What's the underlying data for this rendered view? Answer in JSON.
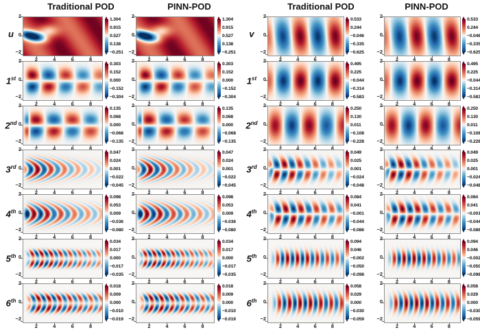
{
  "chart_data": {
    "type": "heatmap",
    "description": "Grid of 28 heatmap panels comparing Traditional POD and PINN-POD modes for velocity components u and v",
    "column_headers": [
      "Traditional POD",
      "PINN-POD",
      "Traditional POD",
      "PINN-POD"
    ],
    "axis": {
      "x_ticks": [
        2,
        4,
        6,
        8
      ],
      "x_tick_labels": [
        "2",
        "4",
        "6",
        "8"
      ],
      "y_tick_labels": [
        "2",
        "0",
        "−2"
      ],
      "x_range": [
        0.5,
        9.2
      ],
      "y_range": [
        -2.05,
        2.05
      ],
      "grid": false
    },
    "colormap": "RdBu_r",
    "methods": [
      "Traditional POD",
      "PINN-POD"
    ],
    "groups": [
      {
        "variable": "u",
        "rows": [
          {
            "label": "u",
            "sup": "",
            "cbar": [
              "1.304",
              "0.915",
              "0.527",
              "0.138",
              "−0.251"
            ],
            "field": {
              "kind": "meanU"
            }
          },
          {
            "label": "1",
            "sup": "st",
            "cbar": [
              "0.303",
              "0.152",
              "0.000",
              "−0.152",
              "−0.304"
            ],
            "field": {
              "kind": "wave",
              "sym": "anti",
              "k": 1.66,
              "x0": 1.45,
              "yr": 0.62,
              "tilt": 0.05,
              "on": 0.8,
              "slope": 5,
              "dec": 0.1,
              "df": 2.0,
              "amp": 1
            }
          },
          {
            "label": "2",
            "sup": "nd",
            "cbar": [
              "0.135",
              "0.068",
              "0.000",
              "−0.068",
              "−0.135"
            ],
            "field": {
              "kind": "wave",
              "sym": "anti",
              "k": 1.55,
              "x0": 1.9,
              "yr": 0.62,
              "tilt": 0.05,
              "on": 0.85,
              "slope": 5,
              "dec": 0.06,
              "df": 2.2,
              "amp": 0.92,
              "lead": {
                "x": 0.95,
                "w": 0.28,
                "a": -0.7
              }
            }
          },
          {
            "label": "3",
            "sup": "rd",
            "cbar": [
              "0.047",
              "0.024",
              "0.001",
              "−0.022",
              "−0.045"
            ],
            "field": {
              "kind": "wave",
              "sym": "sym",
              "k": 4.2,
              "x0": 2.1,
              "ys": 1.0,
              "tilt": 1.05,
              "on": 0.8,
              "slope": 6,
              "dec": 0.28,
              "df": 2.4,
              "amp": 1
            }
          },
          {
            "label": "4",
            "sup": "th",
            "cbar": [
              "0.098",
              "0.053",
              "0.009",
              "−0.036",
              "−0.080"
            ],
            "field": {
              "kind": "wave",
              "sym": "sym",
              "k": 4.2,
              "x0": 1.7,
              "ys": 1.0,
              "tilt": 0.92,
              "on": 0.9,
              "slope": 6,
              "dec": 0.2,
              "df": 2.6,
              "amp": 1,
              "lead": {
                "x": 0.88,
                "w": 0.25,
                "a": -0.85,
                "ys": 0.4
              }
            }
          },
          {
            "label": "5",
            "sup": "th",
            "cbar": [
              "0.034",
              "0.017",
              "0.000",
              "−0.017",
              "−0.035"
            ],
            "field": {
              "kind": "wave",
              "sym": "ring2",
              "k": 5.98,
              "x0": 1.6,
              "yr": 0.55,
              "ys": 0.38,
              "tilt": 0.45,
              "on": 1.1,
              "slope": 6,
              "dec": 0.15,
              "df": 3.2,
              "amp": 1
            }
          },
          {
            "label": "6",
            "sup": "th",
            "cbar": [
              "0.018",
              "0.009",
              "0.000",
              "−0.010",
              "−0.019"
            ],
            "field": {
              "kind": "wave",
              "sym": "ring2",
              "k": 5.46,
              "x0": 2.3,
              "yr": 0.55,
              "ys": 0.42,
              "tilt": 0.45,
              "on": 1.2,
              "slope": 6,
              "dec": 0.1,
              "df": 3.5,
              "amp": 1
            }
          }
        ]
      },
      {
        "variable": "v",
        "rows": [
          {
            "label": "v",
            "sup": "",
            "cbar": [
              "0.533",
              "0.244",
              "−0.046",
              "−0.335",
              "−0.625"
            ],
            "field": {
              "kind": "wave",
              "sym": "sym",
              "k": 1.55,
              "x0": 0.15,
              "ys": 1.75,
              "ytilt": 0.12,
              "on": 0.2,
              "slope": 1.5,
              "amp": 0.97
            }
          },
          {
            "label": "1",
            "sup": "st",
            "cbar": [
              "0.495",
              "0.225",
              "−0.044",
              "−0.314",
              "−0.583"
            ],
            "field": {
              "kind": "wave",
              "sym": "sym",
              "k": 1.57,
              "x0": 4.25,
              "ys": 1.35,
              "on": 0.3,
              "slope": 2,
              "amp": 1
            }
          },
          {
            "label": "2",
            "sup": "nd",
            "cbar": [
              "0.250",
              "0.130",
              "0.011",
              "−0.108",
              "−0.228"
            ],
            "field": {
              "kind": "wave",
              "sym": "sym",
              "k": 1.57,
              "x0": 1.25,
              "ys": 1.4,
              "on": 0.3,
              "slope": 2.5,
              "dec": 0.05,
              "df": 5.0,
              "amp": 0.95
            }
          },
          {
            "label": "3",
            "sup": "rd",
            "cbar": [
              "0.049",
              "0.025",
              "0.001",
              "−0.024",
              "−0.048"
            ],
            "field": {
              "kind": "wave",
              "sym": "anti",
              "k": 3.5,
              "x0": 2.45,
              "yr": 0.55,
              "tilt": 0.2,
              "on": 0.75,
              "slope": 6,
              "dec": 0.2,
              "df": 3.0,
              "amp": 1,
              "lead": {
                "x": 0.9,
                "w": 0.22,
                "a": -0.45,
                "ys": 0.35
              }
            }
          },
          {
            "label": "4",
            "sup": "th",
            "cbar": [
              "0.084",
              "0.041",
              "−0.001",
              "−0.044",
              "−0.086"
            ],
            "field": {
              "kind": "wave",
              "sym": "anti",
              "k": 3.55,
              "x0": 2.6,
              "yr": 0.55,
              "tilt": 0.2,
              "on": 0.95,
              "slope": 6,
              "dec": 0.12,
              "df": 3.5,
              "amp": 1,
              "lead": {
                "x": 0.9,
                "w": 0.22,
                "a": -0.45,
                "ys": 0.35
              }
            }
          },
          {
            "label": "5",
            "sup": "th",
            "cbar": [
              "0.094",
              "0.046",
              "−0.002",
              "−0.050",
              "−0.098"
            ],
            "field": {
              "kind": "wave",
              "sym": "sym",
              "k": 5.46,
              "x0": 2.75,
              "ys": 0.72,
              "tilt": 0.15,
              "on": 1.3,
              "slope": 4,
              "dec": 0.12,
              "df": 4.5,
              "amp": 1
            }
          },
          {
            "label": "6",
            "sup": "th",
            "cbar": [
              "0.058",
              "0.029",
              "0.000",
              "−0.030",
              "−0.059"
            ],
            "field": {
              "kind": "wave",
              "sym": "sym",
              "k": 5.24,
              "x0": 3.0,
              "ys": 0.85,
              "tilt": 0.18,
              "on": 1.4,
              "slope": 3.5,
              "dec": 0.08,
              "df": 5.5,
              "amp": 1
            }
          }
        ]
      }
    ]
  }
}
